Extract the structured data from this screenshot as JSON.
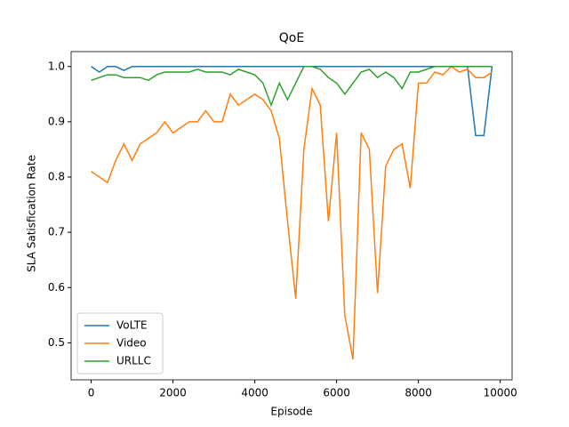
{
  "chart_data": {
    "type": "line",
    "title": "QoE",
    "xlabel": "Episode",
    "ylabel": "SLA Satisfication Rate",
    "x": [
      0,
      200,
      400,
      600,
      800,
      1000,
      1200,
      1400,
      1600,
      1800,
      2000,
      2200,
      2400,
      2600,
      2800,
      3000,
      3200,
      3400,
      3600,
      3800,
      4000,
      4200,
      4400,
      4600,
      4800,
      5000,
      5200,
      5400,
      5600,
      5800,
      6000,
      6200,
      6400,
      6600,
      6800,
      7000,
      7200,
      7400,
      7600,
      7800,
      8000,
      8200,
      8400,
      8600,
      8800,
      9000,
      9200,
      9400,
      9600,
      9800
    ],
    "series": [
      {
        "name": "VoLTE",
        "color": "#1f77b4",
        "values": [
          1,
          0.99,
          1,
          1,
          0.993,
          1,
          1,
          1,
          1,
          1,
          1,
          1,
          1,
          1,
          1,
          1,
          1,
          1,
          1,
          1,
          1,
          1,
          1,
          1,
          1,
          1,
          1,
          1,
          1,
          1,
          1,
          1,
          1,
          1,
          1,
          1,
          1,
          1,
          1,
          1,
          1,
          1,
          1,
          1,
          1,
          1,
          1,
          0.875,
          0.875,
          1
        ]
      },
      {
        "name": "Video",
        "color": "#ff7f0e",
        "values": [
          0.81,
          0.8,
          0.79,
          0.83,
          0.86,
          0.83,
          0.86,
          0.87,
          0.88,
          0.9,
          0.88,
          0.89,
          0.9,
          0.9,
          0.92,
          0.9,
          0.9,
          0.95,
          0.93,
          0.94,
          0.95,
          0.94,
          0.92,
          0.87,
          0.72,
          0.58,
          0.85,
          0.96,
          0.93,
          0.72,
          0.88,
          0.55,
          0.47,
          0.88,
          0.85,
          0.59,
          0.82,
          0.85,
          0.86,
          0.78,
          0.97,
          0.97,
          0.99,
          0.985,
          1,
          0.99,
          0.995,
          0.98,
          0.98,
          0.99
        ]
      },
      {
        "name": "URLLC",
        "color": "#2ca02c",
        "values": [
          0.975,
          0.98,
          0.985,
          0.985,
          0.98,
          0.98,
          0.98,
          0.975,
          0.985,
          0.99,
          0.99,
          0.99,
          0.99,
          0.995,
          0.99,
          0.99,
          0.99,
          0.985,
          0.995,
          0.99,
          0.985,
          0.97,
          0.93,
          0.97,
          0.94,
          0.97,
          1,
          1,
          0.995,
          0.98,
          0.97,
          0.95,
          0.97,
          0.99,
          0.995,
          0.98,
          0.99,
          0.98,
          0.96,
          0.99,
          0.99,
          0.995,
          1,
          1,
          1,
          1,
          1,
          1,
          1,
          1
        ]
      }
    ],
    "xlim": [
      -490,
      10290
    ],
    "xticks": [
      0,
      2000,
      4000,
      6000,
      8000,
      10000
    ],
    "ylim": [
      0.433,
      1.027
    ],
    "yticks": [
      0.5,
      0.6,
      0.7,
      0.8,
      0.9,
      {
        "value": 1,
        "label": "1.0"
      }
    ],
    "legend": "lower left"
  }
}
